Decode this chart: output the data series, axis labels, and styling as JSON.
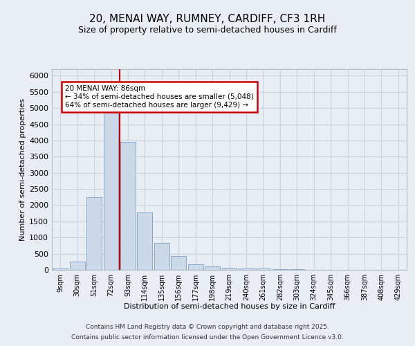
{
  "title_line1": "20, MENAI WAY, RUMNEY, CARDIFF, CF3 1RH",
  "title_line2": "Size of property relative to semi-detached houses in Cardiff",
  "xlabel": "Distribution of semi-detached houses by size in Cardiff",
  "ylabel": "Number of semi-detached properties",
  "categories": [
    "9sqm",
    "30sqm",
    "51sqm",
    "72sqm",
    "93sqm",
    "114sqm",
    "135sqm",
    "156sqm",
    "177sqm",
    "198sqm",
    "219sqm",
    "240sqm",
    "261sqm",
    "282sqm",
    "303sqm",
    "324sqm",
    "345sqm",
    "366sqm",
    "387sqm",
    "408sqm",
    "429sqm"
  ],
  "values": [
    50,
    255,
    2250,
    4980,
    3950,
    1780,
    840,
    430,
    170,
    105,
    65,
    50,
    35,
    22,
    12,
    6,
    3,
    2,
    1,
    0,
    0
  ],
  "bar_color": "#ccd9e8",
  "bar_edge_color": "#7aa0c0",
  "grid_color": "#c8d4e0",
  "vline_bin": 3,
  "vline_color": "#cc0000",
  "annotation_title": "20 MENAI WAY: 86sqm",
  "annotation_line1": "← 34% of semi-detached houses are smaller (5,048)",
  "annotation_line2": "64% of semi-detached houses are larger (9,429) →",
  "annotation_box_color": "#cc0000",
  "ylim": [
    0,
    6200
  ],
  "yticks": [
    0,
    500,
    1000,
    1500,
    2000,
    2500,
    3000,
    3500,
    4000,
    4500,
    5000,
    5500,
    6000
  ],
  "footer_line1": "Contains HM Land Registry data © Crown copyright and database right 2025.",
  "footer_line2": "Contains public sector information licensed under the Open Government Licence v3.0.",
  "bg_color": "#e8eef4",
  "plot_bg_color": "#e8eef4"
}
